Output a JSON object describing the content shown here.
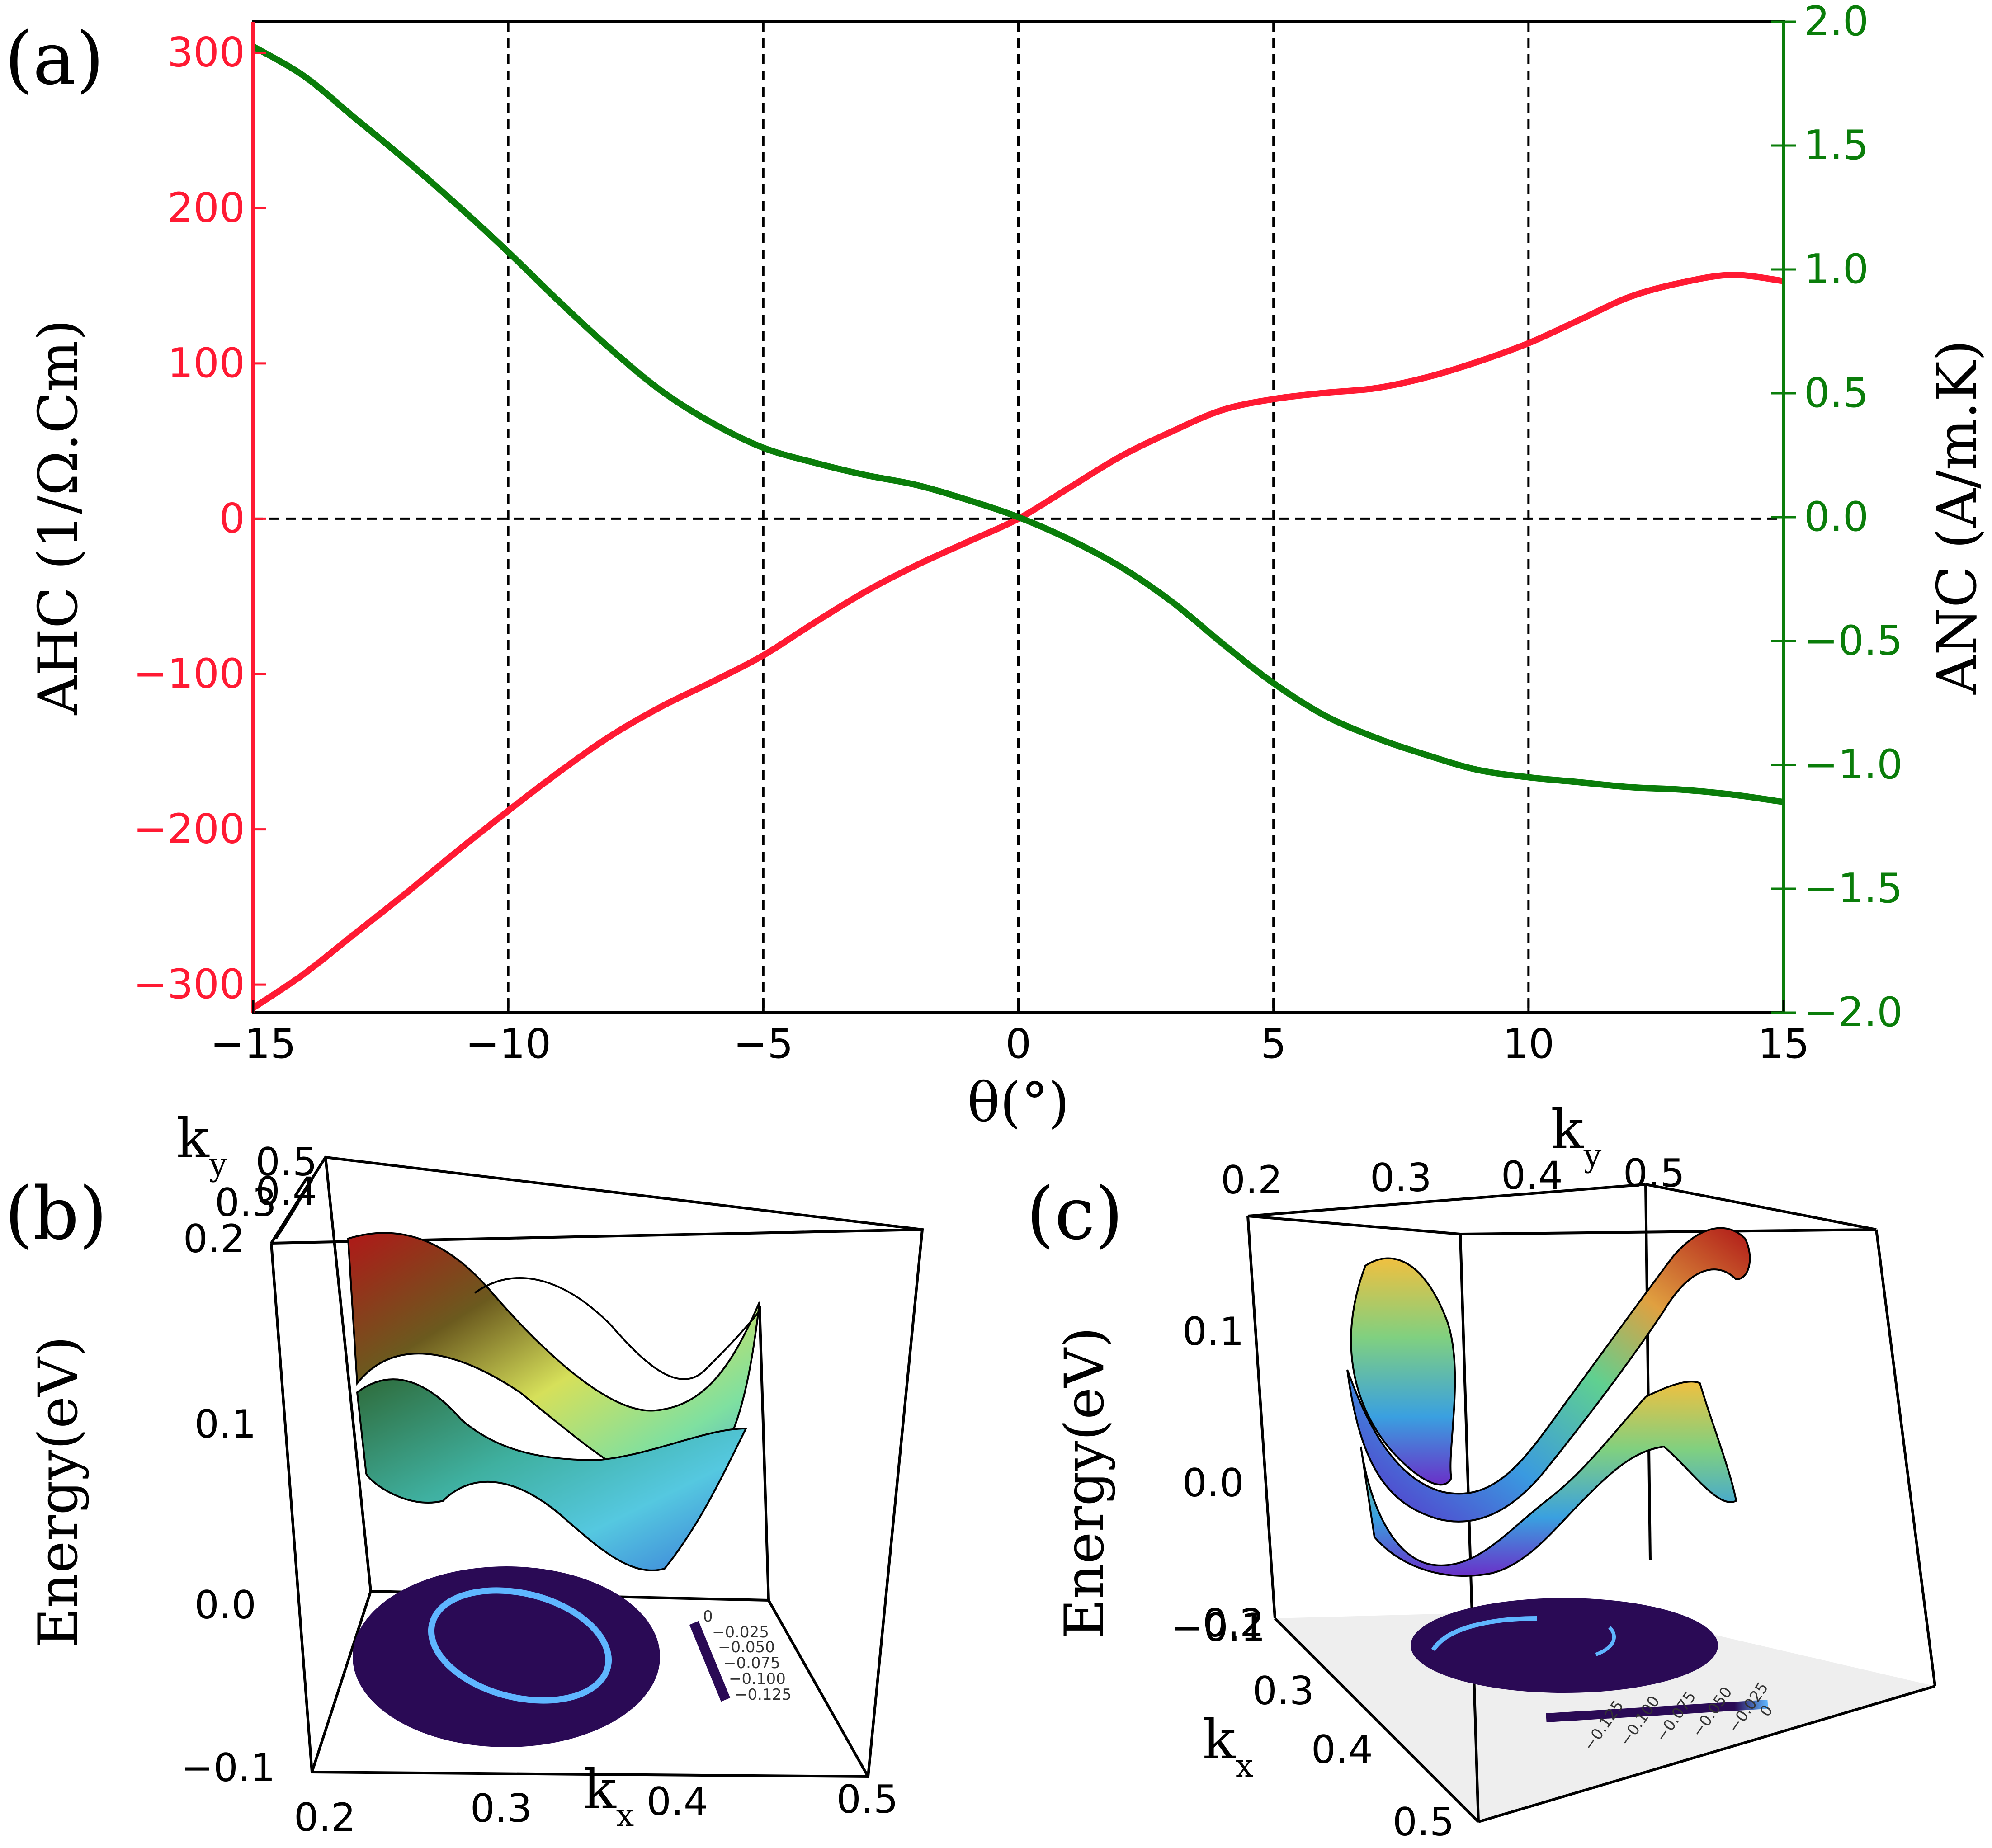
{
  "colors": {
    "ahc": "#ff1a33",
    "anc": "#0a7d0a",
    "axis": "#000000",
    "colormap_dark": "#2a0a55",
    "colormap_ring": "#5fb6ff"
  },
  "panel_labels": {
    "a": "(a)",
    "b": "(b)",
    "c": "(c)"
  },
  "chart_data": [
    {
      "id": "a",
      "type": "line",
      "title": "",
      "xlabel": "θ(°)",
      "ylabel_left": "AHC (1/Ω.Cm)",
      "ylabel_right": "ANC (A/m.K)",
      "xlim": [
        -15,
        15
      ],
      "ylim_left": [
        -318,
        320
      ],
      "ylim_right": [
        -2.0,
        2.0
      ],
      "xticks": [
        -15,
        -10,
        -5,
        0,
        5,
        10,
        15
      ],
      "xtick_labels": [
        "−15",
        "−10",
        "−5",
        "0",
        "5",
        "10",
        "15"
      ],
      "yticks_left": [
        -300,
        -200,
        -100,
        0,
        100,
        200,
        300
      ],
      "ytick_labels_left": [
        "−300",
        "−200",
        "−100",
        "0",
        "100",
        "200",
        "300"
      ],
      "yticks_right": [
        -2.0,
        -1.5,
        -1.0,
        -0.5,
        0.0,
        0.5,
        1.0,
        1.5,
        2.0
      ],
      "ytick_labels_right": [
        "−2.0",
        "−1.5",
        "−1.0",
        "−0.5",
        "0.0",
        "0.5",
        "1.0",
        "1.5",
        "2.0"
      ],
      "grid": "dashed vertical at x ticks and horizontal at y=0",
      "x": [
        -15,
        -14,
        -13,
        -12,
        -11,
        -10,
        -9,
        -8,
        -7,
        -6,
        -5,
        -4,
        -3,
        -2,
        -1,
        0,
        1,
        2,
        3,
        4,
        5,
        6,
        7,
        8,
        9,
        10,
        11,
        12,
        13,
        14,
        15
      ],
      "series": [
        {
          "name": "AHC",
          "axis": "left",
          "values": [
            -315,
            -293,
            -267,
            -241,
            -214,
            -188,
            -163,
            -140,
            -121,
            -105,
            -88,
            -67,
            -47,
            -30,
            -15,
            0,
            20,
            40,
            56,
            70,
            77,
            81,
            84,
            91,
            101,
            113,
            128,
            143,
            152,
            157,
            153
          ]
        },
        {
          "name": "ANC",
          "axis": "right",
          "values": [
            1.9,
            1.78,
            1.61,
            1.44,
            1.26,
            1.07,
            0.87,
            0.68,
            0.51,
            0.38,
            0.28,
            0.22,
            0.17,
            0.13,
            0.07,
            0.0,
            -0.09,
            -0.2,
            -0.34,
            -0.51,
            -0.67,
            -0.8,
            -0.89,
            -0.96,
            -1.02,
            -1.05,
            -1.07,
            -1.09,
            -1.1,
            -1.12,
            -1.15
          ]
        }
      ]
    },
    {
      "id": "b",
      "type": "3d-surface",
      "zlabel": "Energy(eV)",
      "xlabel": "k",
      "xlabel_sub": "x",
      "ylabel": "k",
      "ylabel_sub": "y",
      "z_ticks": [
        "0.1",
        "0.0",
        "−0.1"
      ],
      "x_ticks": [
        "0.2",
        "0.3",
        "0.4",
        "0.5"
      ],
      "y_ticks": [
        "0.5",
        "0.4",
        "0.3",
        "0.2"
      ],
      "colorbar_ticks": [
        "0",
        "−0.025",
        "−0.050",
        "−0.075",
        "−0.100",
        "−0.125"
      ]
    },
    {
      "id": "c",
      "type": "3d-surface",
      "zlabel": "Energy(eV)",
      "xlabel": "k",
      "xlabel_sub": "x",
      "ylabel": "k",
      "ylabel_sub": "y",
      "z_ticks": [
        "0.1",
        "0.0",
        "−0.1"
      ],
      "y_ticks": [
        "0.2",
        "0.3",
        "0.4",
        "0.5"
      ],
      "x_ticks": [
        "0.2",
        "0.3",
        "0.4",
        "0.5"
      ],
      "colorbar_ticks": [
        "0",
        "−0.025",
        "−0.050",
        "−0.075",
        "−0.100",
        "−0.125"
      ]
    }
  ]
}
